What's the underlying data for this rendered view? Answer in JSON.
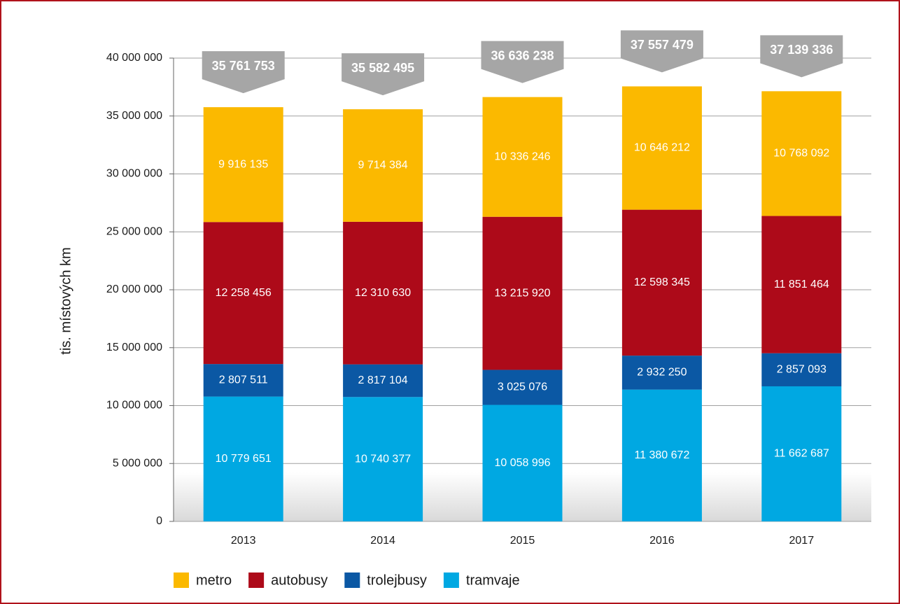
{
  "chart_data": {
    "type": "stacked-bar",
    "categories": [
      "2013",
      "2014",
      "2015",
      "2016",
      "2017"
    ],
    "ylabel": "tis. místových km",
    "ylim": [
      0,
      40000000
    ],
    "yticks": [
      0,
      {
        "value": 5000000,
        "label": "5 000 000"
      },
      {
        "value": 10000000,
        "label": "10 000 000"
      },
      {
        "value": 15000000,
        "label": "15 000 000"
      },
      {
        "value": 20000000,
        "label": "20 000 000"
      },
      {
        "value": 25000000,
        "label": "25 000 000"
      },
      {
        "value": 30000000,
        "label": "30 000 000"
      },
      {
        "value": 35000000,
        "label": "35 000 000"
      },
      {
        "value": 40000000,
        "label": "40 000 000"
      }
    ],
    "grid": true,
    "series": [
      {
        "name": "tramvaje",
        "color": "#00a8e2",
        "values": [
          10779651,
          10740377,
          10058996,
          11380672,
          11662687
        ],
        "value_labels": [
          "10 779 651",
          "10 740 377",
          "10 058 996",
          "11 380 672",
          "11 662 687"
        ]
      },
      {
        "name": "trolejbusy",
        "color": "#0b58a4",
        "values": [
          2807511,
          2817104,
          3025076,
          2932250,
          2857093
        ],
        "value_labels": [
          "2 807 511",
          "2 817 104",
          "3 025 076",
          "2 932 250",
          "2 857 093"
        ]
      },
      {
        "name": "autobusy",
        "color": "#ad0a19",
        "values": [
          12258456,
          12310630,
          13215920,
          12598345,
          11851464
        ],
        "value_labels": [
          "12 258 456",
          "12 310 630",
          "13 215 920",
          "12 598 345",
          "11 851 464"
        ]
      },
      {
        "name": "metro",
        "color": "#fbb900",
        "values": [
          9916135,
          9714384,
          10336246,
          10646212,
          10768092
        ],
        "value_labels": [
          "9 916 135",
          "9 714 384",
          "10 336 246",
          "10 646 212",
          "10 768 092"
        ]
      }
    ],
    "totals": {
      "color": "#a6a6a6",
      "values": [
        35761753,
        35582495,
        36636238,
        37557479,
        37139336
      ],
      "value_labels": [
        "35 761 753",
        "35 582 495",
        "36 636 238",
        "37 557 479",
        "37 139 336"
      ]
    }
  }
}
